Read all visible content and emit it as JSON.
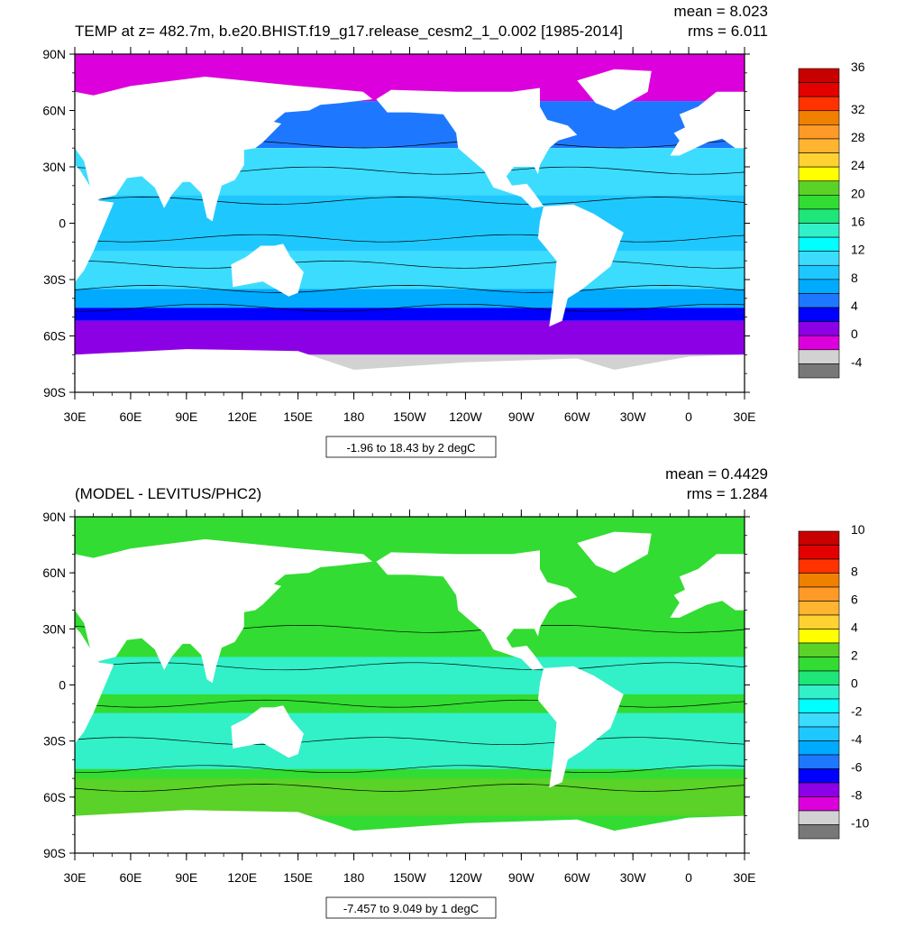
{
  "chart_data": [
    {
      "type": "heatmap",
      "title": "TEMP at z= 482.7m, b.e20.BHIST.f19_g17.release_cesm2_1_0.002 [1985-2014]",
      "mean_label": "mean = 8.023",
      "rms_label": "rms = 6.011",
      "contour_info": "-1.96 to 18.43 by 2 degC",
      "colorbar_ticks": [
        "36",
        "32",
        "28",
        "24",
        "20",
        "16",
        "12",
        "8",
        "4",
        "0",
        "-4"
      ],
      "colorbar_colors": [
        "#c80000",
        "#e40000",
        "#ff3200",
        "#f08000",
        "#ff9a28",
        "#ffb432",
        "#ffd232",
        "#ffff00",
        "#5ad228",
        "#32dc32",
        "#1ee678",
        "#32f0c8",
        "#00ffff",
        "#3cdcff",
        "#1ec8ff",
        "#00aaff",
        "#1e78ff",
        "#0000ff",
        "#8c00e6",
        "#dc00dc",
        "#d2d2d2",
        "#787878"
      ],
      "ylim": [
        -90,
        90
      ],
      "y_ticks": [
        "90N",
        "60N",
        "30N",
        "0",
        "30S",
        "60S",
        "90S"
      ],
      "x_ticks": [
        "30E",
        "60E",
        "90E",
        "120E",
        "150E",
        "180",
        "150W",
        "120W",
        "90W",
        "60W",
        "30W",
        "0",
        "30E"
      ],
      "field": {
        "zonal_bands": [
          {
            "lat": [
              65,
              90
            ],
            "color": "#dc00dc"
          },
          {
            "lat": [
              40,
              65
            ],
            "color": "#1e78ff"
          },
          {
            "lat": [
              15,
              40
            ],
            "color": "#3cdcff"
          },
          {
            "lat": [
              -15,
              15
            ],
            "color": "#1ec8ff"
          },
          {
            "lat": [
              -35,
              -15
            ],
            "color": "#3cdcff"
          },
          {
            "lat": [
              -45,
              -35
            ],
            "color": "#00aaff"
          },
          {
            "lat": [
              -52,
              -45
            ],
            "color": "#0000ff"
          },
          {
            "lat": [
              -70,
              -52
            ],
            "color": "#8c00e6"
          },
          {
            "lat": [
              -90,
              -70
            ],
            "color": "#d2d2d2"
          }
        ],
        "contours": [
          42,
          28,
          12,
          -8,
          -22,
          -35,
          -45
        ]
      }
    },
    {
      "type": "heatmap",
      "title": "(MODEL - LEVITUS/PHC2)",
      "mean_label": "mean = 0.4429",
      "rms_label": "rms = 1.284",
      "contour_info": "-7.457 to 9.049 by 1 degC",
      "colorbar_ticks": [
        "10",
        "8",
        "6",
        "4",
        "2",
        "0",
        "-2",
        "-4",
        "-6",
        "-8",
        "-10"
      ],
      "colorbar_colors": [
        "#c80000",
        "#e40000",
        "#ff3200",
        "#f08000",
        "#ff9a28",
        "#ffb432",
        "#ffd232",
        "#ffff00",
        "#5ad228",
        "#32dc32",
        "#1ee678",
        "#32f0c8",
        "#00ffff",
        "#3cdcff",
        "#1ec8ff",
        "#00aaff",
        "#1e78ff",
        "#0000ff",
        "#8c00e6",
        "#dc00dc",
        "#d2d2d2",
        "#787878"
      ],
      "ylim": [
        -90,
        90
      ],
      "y_ticks": [
        "90N",
        "60N",
        "30N",
        "0",
        "30S",
        "60S",
        "90S"
      ],
      "x_ticks": [
        "30E",
        "60E",
        "90E",
        "120E",
        "150E",
        "180",
        "150W",
        "120W",
        "90W",
        "60W",
        "30W",
        "0",
        "30E"
      ],
      "field": {
        "zonal_bands": [
          {
            "lat": [
              -90,
              90
            ],
            "color": "#32dc32"
          },
          {
            "lat": [
              -5,
              15
            ],
            "color": "#32f0c8"
          },
          {
            "lat": [
              -45,
              -15
            ],
            "color": "#32f0c8"
          },
          {
            "lat": [
              -70,
              -50
            ],
            "color": "#5ad228"
          }
        ],
        "contours": [
          30,
          10,
          -10,
          -30,
          -45,
          -55
        ]
      }
    }
  ]
}
